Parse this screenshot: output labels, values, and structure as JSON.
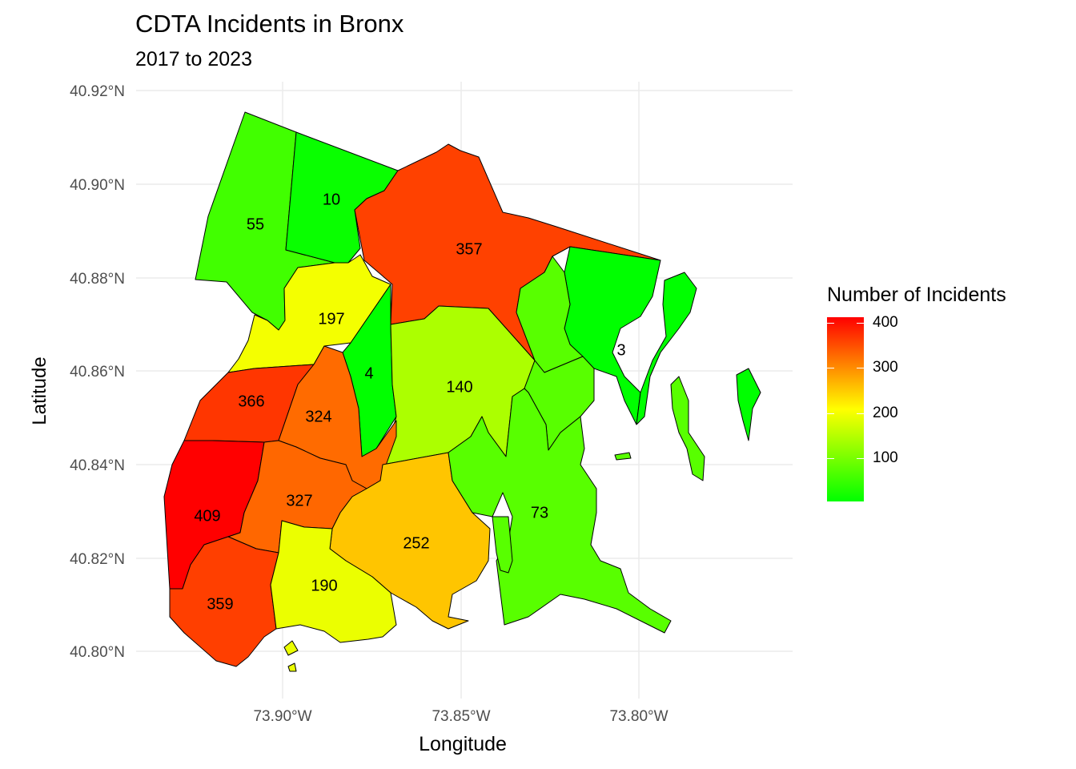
{
  "title": "CDTA Incidents in Bronx",
  "subtitle": "2017 to 2023",
  "axes": {
    "x_label": "Longitude",
    "y_label": "Latitude",
    "x_ticks": [
      "73.90°W",
      "73.85°W",
      "73.80°W"
    ],
    "y_ticks": [
      "40.92°N",
      "40.90°N",
      "40.88°N",
      "40.86°N",
      "40.84°N",
      "40.82°N",
      "40.80°N"
    ]
  },
  "legend": {
    "title": "Number of Incidents",
    "ticks": [
      "400",
      "300",
      "200",
      "100"
    ],
    "scale_min": 3,
    "scale_max": 409,
    "colors": {
      "low": "#00ff00",
      "mid": "#ffff00",
      "high": "#ff0000"
    }
  },
  "regions": [
    {
      "label": "55",
      "value": 55
    },
    {
      "label": "10",
      "value": 10
    },
    {
      "label": "357",
      "value": 357
    },
    {
      "label": "197",
      "value": 197
    },
    {
      "label": "4",
      "value": 4
    },
    {
      "label": "140",
      "value": 140
    },
    {
      "label": "3",
      "value": 3
    },
    {
      "label": "366",
      "value": 366
    },
    {
      "label": "324",
      "value": 324
    },
    {
      "label": "409",
      "value": 409
    },
    {
      "label": "327",
      "value": 327
    },
    {
      "label": "252",
      "value": 252
    },
    {
      "label": "73",
      "value": 73
    },
    {
      "label": "359",
      "value": 359
    },
    {
      "label": "190",
      "value": 190
    }
  ]
}
